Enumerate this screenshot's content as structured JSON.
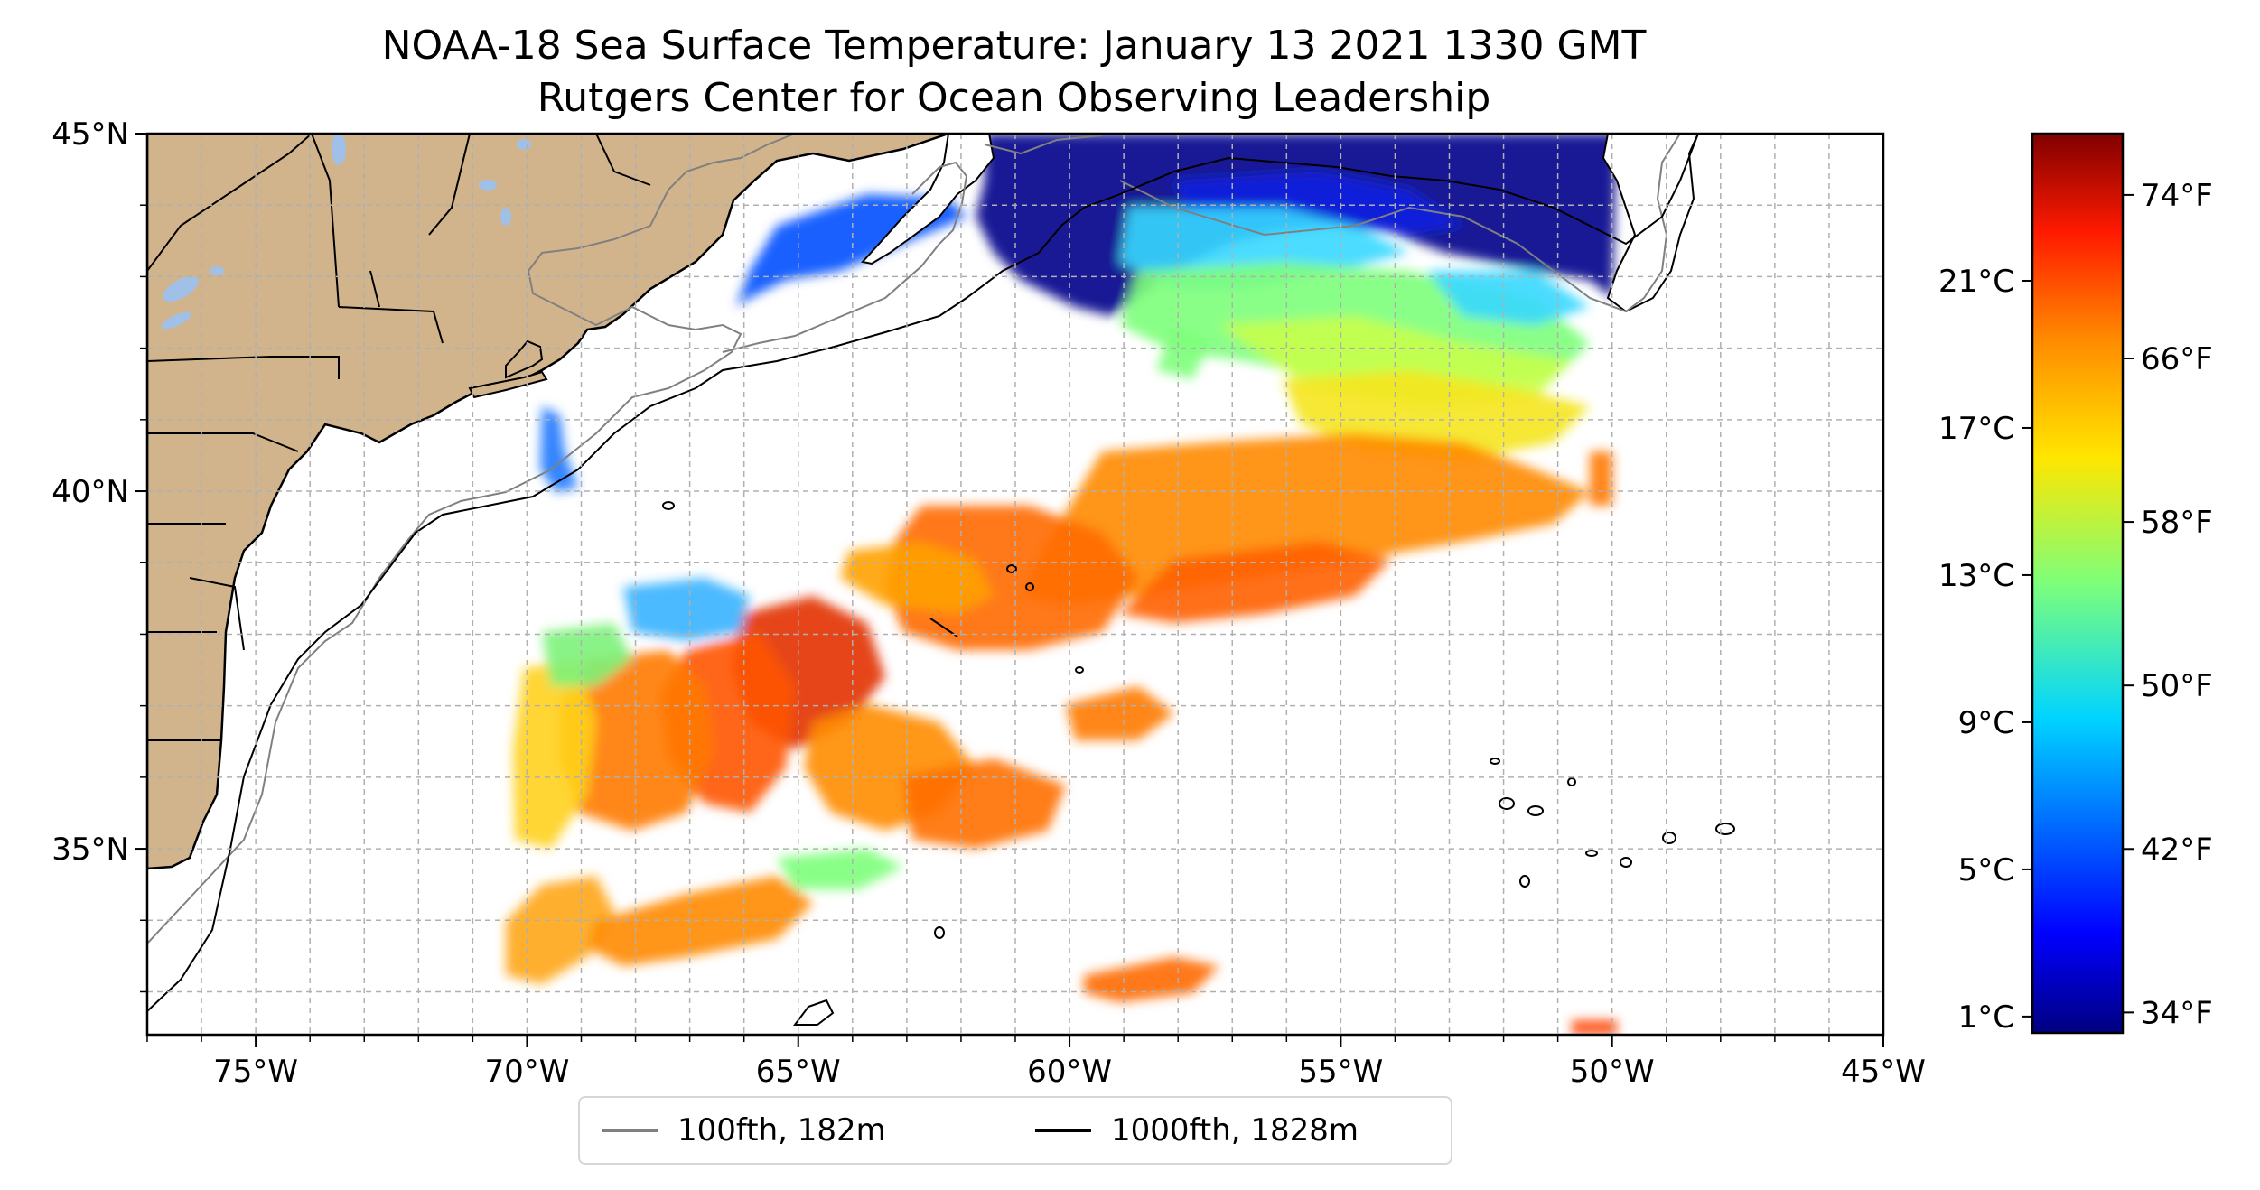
{
  "title": {
    "line1": "NOAA-18 Sea Surface Temperature: January 13 2021 1330 GMT",
    "line2": "Rutgers Center for Ocean Observing Leadership"
  },
  "map": {
    "lon_range": [
      -77,
      -45
    ],
    "lat_range": [
      32.4,
      45
    ],
    "lon_ticks": [
      {
        "value": -75,
        "label": "75°W"
      },
      {
        "value": -70,
        "label": "70°W"
      },
      {
        "value": -65,
        "label": "65°W"
      },
      {
        "value": -60,
        "label": "60°W"
      },
      {
        "value": -55,
        "label": "55°W"
      },
      {
        "value": -50,
        "label": "50°W"
      },
      {
        "value": -45,
        "label": "45°W"
      }
    ],
    "lat_ticks": [
      {
        "value": 45,
        "label": "45°N"
      },
      {
        "value": 40,
        "label": "40°N"
      },
      {
        "value": 35,
        "label": "35°N"
      }
    ],
    "grid": true,
    "colors": {
      "land": "#d2b48c",
      "lakes": "#a0c0e8",
      "ocean_no_data": "#ffffff",
      "isobath_100fth": "#808080",
      "isobath_1000fth": "#000000"
    }
  },
  "colorbar": {
    "colormap": "jet",
    "range_f": [
      33,
      77
    ],
    "celsius_ticks": [
      {
        "value": 21,
        "label": "21°C"
      },
      {
        "value": 17,
        "label": "17°C"
      },
      {
        "value": 13,
        "label": "13°C"
      },
      {
        "value": 9,
        "label": "9°C"
      },
      {
        "value": 5,
        "label": "5°C"
      },
      {
        "value": 1,
        "label": "1°C"
      }
    ],
    "fahrenheit_ticks": [
      {
        "value": 74,
        "label": "74°F"
      },
      {
        "value": 66,
        "label": "66°F"
      },
      {
        "value": 58,
        "label": "58°F"
      },
      {
        "value": 50,
        "label": "50°F"
      },
      {
        "value": 42,
        "label": "42°F"
      },
      {
        "value": 34,
        "label": "34°F"
      }
    ]
  },
  "legend": {
    "entries": [
      {
        "label": "100fth, 182m",
        "color": "#808080"
      },
      {
        "label": "1000fth, 1828m",
        "color": "#000000"
      }
    ]
  }
}
